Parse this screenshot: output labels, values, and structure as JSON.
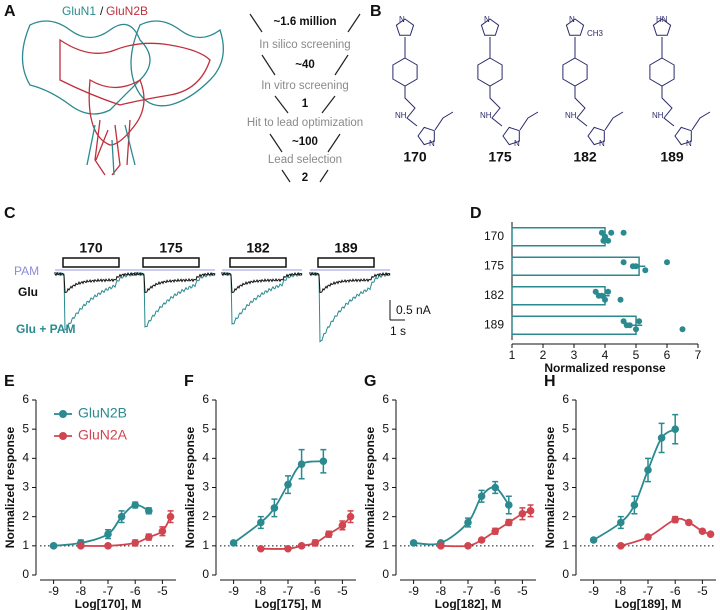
{
  "panels": {
    "a": "A",
    "b": "B",
    "c": "C"
  },
  "panel_a": {
    "label_1": "GluN1",
    "separator": "/",
    "label_2": "GluN2B"
  },
  "funnel": [
    "~1.6 million",
    "In silico screening",
    "~40",
    "In vitro screening",
    "1",
    "Hit to lead optimization",
    "~100",
    "Lead selection",
    "2"
  ],
  "compounds": [
    "170",
    "175",
    "182",
    "189"
  ],
  "atoms": {
    "n": "N",
    "nh": "NH",
    "hn": "HN",
    "ch3": "CH3"
  },
  "traces": {
    "pam": "PAM",
    "glu": "Glu",
    "glu_pam": "Glu + PAM",
    "scale_current": "0.5 nA",
    "scale_time": "1 s"
  },
  "chart_data": [
    {
      "type": "hbar",
      "panel": "D",
      "categories": [
        "170",
        "175",
        "182",
        "189"
      ],
      "values": [
        4.0,
        5.1,
        4.0,
        5.0
      ],
      "errors": [
        0.1,
        0.2,
        0.15,
        0.2
      ],
      "points": [
        [
          3.9,
          4.0,
          4.1,
          4.2,
          4.0,
          3.95,
          4.6
        ],
        [
          4.6,
          5.0,
          5.3,
          6.0,
          4.9
        ],
        [
          3.7,
          3.9,
          4.0,
          4.1,
          3.8,
          4.5
        ],
        [
          4.6,
          4.8,
          5.0,
          5.1,
          4.7,
          6.5
        ]
      ],
      "color": "#2a8a8f",
      "xlim": [
        1,
        7
      ],
      "xticks": [
        1,
        2,
        3,
        4,
        5,
        6,
        7
      ],
      "xlabel": "Normalized response"
    },
    {
      "type": "dose",
      "panel": "E",
      "xlabel": "Log[170], M",
      "ylabel": "Normalized response",
      "xlim": [
        -9.5,
        -4.5
      ],
      "xticks": [
        -9,
        -8,
        -7,
        -6,
        -5
      ],
      "ylim": [
        0,
        6
      ],
      "yticks": [
        0,
        1,
        2,
        3,
        4,
        5,
        6
      ],
      "reference_line": 1,
      "legend": "upper left",
      "series": [
        {
          "name": "GluN2B",
          "color": "#2a8a8f",
          "x": [
            -9,
            -8,
            -7,
            -6.5,
            -6,
            -5.5
          ],
          "values": [
            1.0,
            1.1,
            1.4,
            2.0,
            2.4,
            2.2
          ],
          "errors": [
            0.05,
            0.1,
            0.15,
            0.2,
            0.1,
            0.1
          ]
        },
        {
          "name": "GluN2A",
          "color": "#d0454f",
          "x": [
            -8,
            -7,
            -6,
            -5.5,
            -5,
            -4.7
          ],
          "values": [
            1.0,
            1.0,
            1.1,
            1.3,
            1.5,
            2.0
          ],
          "errors": [
            0.05,
            0.05,
            0.1,
            0.1,
            0.15,
            0.2
          ]
        }
      ]
    },
    {
      "type": "dose",
      "panel": "F",
      "xlabel": "Log[175], M",
      "ylabel": "Normalized response",
      "xlim": [
        -9.5,
        -4.5
      ],
      "xticks": [
        -9,
        -8,
        -7,
        -6,
        -5
      ],
      "ylim": [
        0,
        6
      ],
      "yticks": [
        0,
        1,
        2,
        3,
        4,
        5,
        6
      ],
      "reference_line": 1,
      "series": [
        {
          "color": "#2a8a8f",
          "x": [
            -9,
            -8,
            -7.5,
            -7,
            -6.5,
            -5.7
          ],
          "values": [
            1.1,
            1.8,
            2.3,
            3.1,
            3.8,
            3.9
          ],
          "errors": [
            0.05,
            0.2,
            0.3,
            0.3,
            0.5,
            0.4
          ]
        },
        {
          "color": "#d0454f",
          "x": [
            -8,
            -7,
            -6.5,
            -6,
            -5.5,
            -5,
            -4.7
          ],
          "values": [
            0.9,
            0.9,
            1.0,
            1.1,
            1.4,
            1.7,
            2.0
          ],
          "errors": [
            0.05,
            0.05,
            0.05,
            0.1,
            0.1,
            0.15,
            0.2
          ]
        }
      ]
    },
    {
      "type": "dose",
      "panel": "G",
      "xlabel": "Log[182], M",
      "ylabel": "Normalized response",
      "xlim": [
        -9.5,
        -4.5
      ],
      "xticks": [
        -9,
        -8,
        -7,
        -6,
        -5
      ],
      "ylim": [
        0,
        6
      ],
      "yticks": [
        0,
        1,
        2,
        3,
        4,
        5,
        6
      ],
      "reference_line": 1,
      "series": [
        {
          "color": "#2a8a8f",
          "x": [
            -9,
            -8,
            -7,
            -6.5,
            -6,
            -5.5
          ],
          "values": [
            1.1,
            1.1,
            1.8,
            2.7,
            3.0,
            2.4
          ],
          "errors": [
            0.05,
            0.05,
            0.15,
            0.2,
            0.2,
            0.3
          ]
        },
        {
          "color": "#d0454f",
          "x": [
            -8,
            -7,
            -6.5,
            -6,
            -5.5,
            -5,
            -4.7
          ],
          "values": [
            1.0,
            1.0,
            1.2,
            1.5,
            1.8,
            2.1,
            2.2
          ],
          "errors": [
            0.05,
            0.05,
            0.05,
            0.1,
            0.1,
            0.2,
            0.2
          ]
        }
      ]
    },
    {
      "type": "dose",
      "panel": "H",
      "xlabel": "Log[189], M",
      "ylabel": "Normalized response",
      "xlim": [
        -9.5,
        -4.5
      ],
      "xticks": [
        -9,
        -8,
        -7,
        -6,
        -5
      ],
      "ylim": [
        0,
        6
      ],
      "yticks": [
        0,
        1,
        2,
        3,
        4,
        5,
        6
      ],
      "reference_line": 1,
      "series": [
        {
          "color": "#2a8a8f",
          "x": [
            -9,
            -8,
            -7.5,
            -7,
            -6.5,
            -6
          ],
          "values": [
            1.2,
            1.8,
            2.4,
            3.6,
            4.7,
            5.0
          ],
          "errors": [
            0.05,
            0.2,
            0.3,
            0.4,
            0.5,
            0.5
          ]
        },
        {
          "color": "#d0454f",
          "x": [
            -8,
            -7,
            -6,
            -5.5,
            -5,
            -4.7
          ],
          "values": [
            1.0,
            1.3,
            1.9,
            1.8,
            1.5,
            1.4
          ],
          "errors": [
            0.05,
            0.05,
            0.1,
            0.05,
            0.05,
            0.05
          ]
        }
      ]
    }
  ]
}
